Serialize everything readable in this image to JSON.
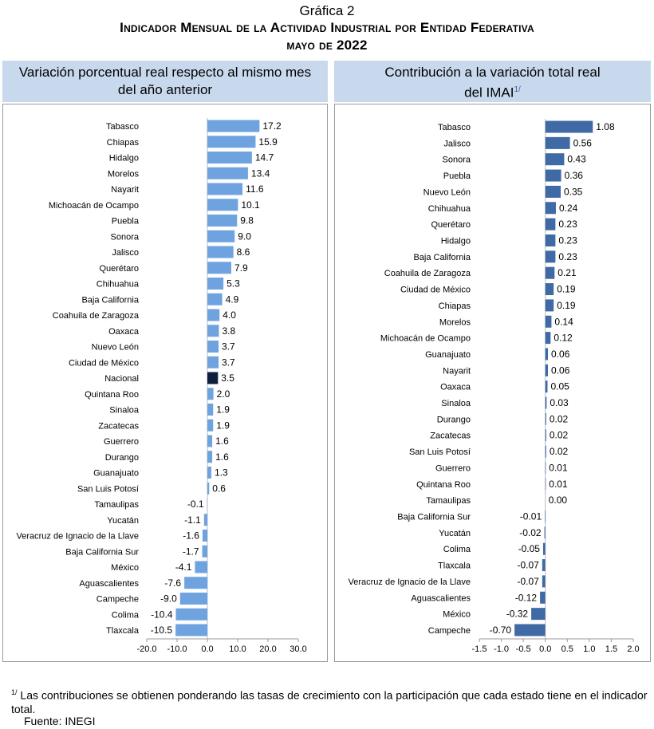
{
  "header": {
    "figure_label": "Gráfica 2",
    "title": "Indicador Mensual de la Actividad Industrial por Entidad Federativa",
    "period": "mayo de 2022"
  },
  "left_panel": {
    "header_line1": "Variación porcentual real respecto al mismo mes",
    "header_line2": "del año anterior"
  },
  "right_panel": {
    "header_line1": "Contribución a la variación total real",
    "header_line2": "del IMAI",
    "header_sup": "1/"
  },
  "footnote": {
    "marker": "1/",
    "text": "Las contribuciones se obtienen ponderando las tasas de crecimiento con la participación que cada estado tiene en el indicador total."
  },
  "source": "Fuente: INEGI",
  "colors": {
    "bar_left": "#6fa3e0",
    "bar_highlight": "#0f1f3d",
    "bar_right": "#3f6aa6",
    "header_bg": "#c8d9ee"
  },
  "chart_data": [
    {
      "type": "bar",
      "orientation": "horizontal",
      "categories": [
        "Tabasco",
        "Chiapas",
        "Hidalgo",
        "Morelos",
        "Nayarit",
        "Michoacán de Ocampo",
        "Puebla",
        "Sonora",
        "Jalisco",
        "Querétaro",
        "Chihuahua",
        "Baja California",
        "Coahuila de Zaragoza",
        "Oaxaca",
        "Nuevo León",
        "Ciudad de México",
        "Nacional",
        "Quintana Roo",
        "Sinaloa",
        "Zacatecas",
        "Guerrero",
        "Durango",
        "Guanajuato",
        "San Luis Potosí",
        "Tamaulipas",
        "Yucatán",
        "Veracruz de Ignacio de la Llave",
        "Baja California Sur",
        "México",
        "Aguascalientes",
        "Campeche",
        "Colima",
        "Tlaxcala"
      ],
      "values": [
        17.2,
        15.9,
        14.7,
        13.4,
        11.6,
        10.1,
        9.8,
        9.0,
        8.6,
        7.9,
        5.3,
        4.9,
        4.0,
        3.8,
        3.7,
        3.7,
        3.5,
        2.0,
        1.9,
        1.9,
        1.6,
        1.6,
        1.3,
        0.6,
        -0.1,
        -1.1,
        -1.6,
        -1.7,
        -4.1,
        -7.6,
        -9.0,
        -10.4,
        -10.5
      ],
      "labels": [
        "17.2",
        "15.9",
        "14.7",
        "13.4",
        "11.6",
        "10.1",
        "9.8",
        "9.0",
        "8.6",
        "7.9",
        "5.3",
        "4.9",
        "4.0",
        "3.8",
        "3.7",
        "3.7",
        "3.5",
        "2.0",
        "1.9",
        "1.9",
        "1.6",
        "1.6",
        "1.3",
        "0.6",
        "-0.1",
        "-1.1",
        "-1.6",
        "-1.7",
        "-4.1",
        "-7.6",
        "-9.0",
        "-10.4",
        "-10.5"
      ],
      "highlight": "Nacional",
      "xlim": [
        -20,
        30
      ],
      "xticks": [
        -20,
        -10,
        0,
        10,
        20,
        30
      ],
      "xtick_labels": [
        "-20.0",
        "-10.0",
        "0.0",
        "10.0",
        "20.0",
        "30.0"
      ]
    },
    {
      "type": "bar",
      "orientation": "horizontal",
      "categories": [
        "Tabasco",
        "Jalisco",
        "Sonora",
        "Puebla",
        "Nuevo León",
        "Chihuahua",
        "Querétaro",
        "Hidalgo",
        "Baja California",
        "Coahuila de Zaragoza",
        "Ciudad de México",
        "Chiapas",
        "Morelos",
        "Michoacán de Ocampo",
        "Guanajuato",
        "Nayarit",
        "Oaxaca",
        "Sinaloa",
        "Durango",
        "Zacatecas",
        "San Luis Potosí",
        "Guerrero",
        "Quintana Roo",
        "Tamaulipas",
        "Baja California Sur",
        "Yucatán",
        "Colima",
        "Tlaxcala",
        "Veracruz de Ignacio de la Llave",
        "Aguascalientes",
        "México",
        "Campeche"
      ],
      "values": [
        1.08,
        0.56,
        0.43,
        0.36,
        0.35,
        0.24,
        0.23,
        0.23,
        0.23,
        0.21,
        0.19,
        0.19,
        0.14,
        0.12,
        0.06,
        0.06,
        0.05,
        0.03,
        0.02,
        0.02,
        0.02,
        0.01,
        0.01,
        0.0,
        -0.01,
        -0.02,
        -0.05,
        -0.07,
        -0.07,
        -0.12,
        -0.32,
        -0.7
      ],
      "labels": [
        "1.08",
        "0.56",
        "0.43",
        "0.36",
        "0.35",
        "0.24",
        "0.23",
        "0.23",
        "0.23",
        "0.21",
        "0.19",
        "0.19",
        "0.14",
        "0.12",
        "0.06",
        "0.06",
        "0.05",
        "0.03",
        "0.02",
        "0.02",
        "0.02",
        "0.01",
        "0.01",
        "0.00",
        "-0.01",
        "-0.02",
        "-0.05",
        "-0.07",
        "-0.07",
        "-0.12",
        "-0.32",
        "-0.70"
      ],
      "xlim": [
        -1.5,
        2.0
      ],
      "xticks": [
        -1.5,
        -1.0,
        -0.5,
        0.0,
        0.5,
        1.0,
        1.5,
        2.0
      ],
      "xtick_labels": [
        "-1.5",
        "-1.0",
        "-0.5",
        "0.0",
        "0.5",
        "1.0",
        "1.5",
        "2.0"
      ]
    }
  ]
}
